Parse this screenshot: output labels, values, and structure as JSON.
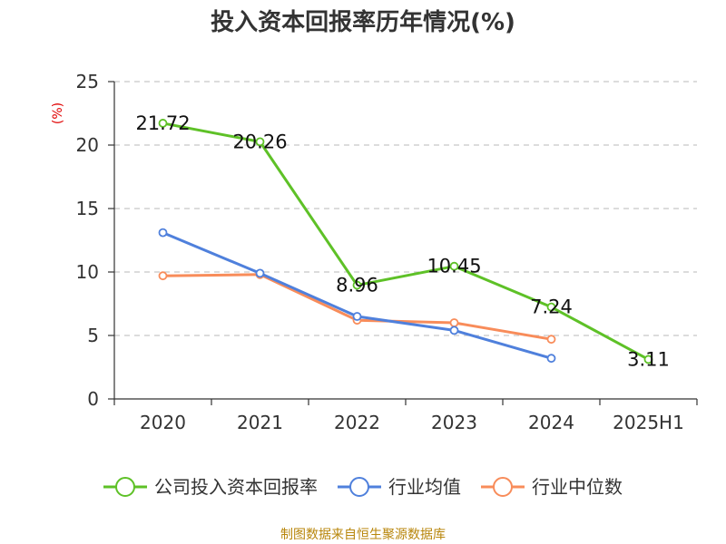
{
  "chart_data": {
    "type": "line",
    "title": "投入资本回报率历年情况(%)",
    "ylabel": "(%)",
    "xlabel": "",
    "categories": [
      "2020",
      "2021",
      "2022",
      "2023",
      "2024",
      "2025H1"
    ],
    "ylim": [
      0,
      25
    ],
    "yticks": [
      0,
      5,
      10,
      15,
      20,
      25
    ],
    "grid": true,
    "legend_position": "bottom",
    "series": [
      {
        "name": "公司投入资本回报率",
        "color": "#5ec127",
        "values": [
          21.72,
          20.26,
          8.96,
          10.45,
          7.24,
          3.11
        ],
        "show_labels": true
      },
      {
        "name": "行业均值",
        "color": "#4f80dc",
        "values": [
          13.1,
          9.9,
          6.5,
          5.4,
          3.2,
          null
        ],
        "show_labels": false
      },
      {
        "name": "行业中位数",
        "color": "#f88c5a",
        "values": [
          9.7,
          9.8,
          6.2,
          6.0,
          4.7,
          null
        ],
        "show_labels": false
      }
    ],
    "source": "制图数据来自恒生聚源数据库"
  }
}
